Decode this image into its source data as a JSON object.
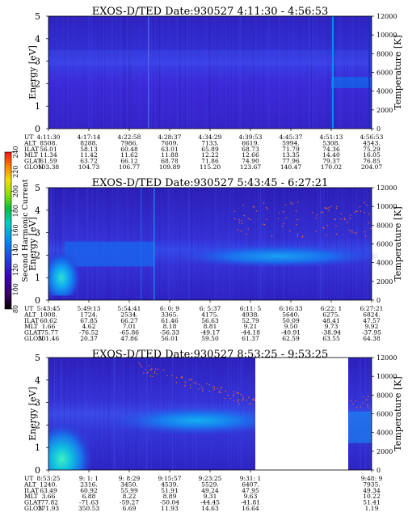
{
  "colorbar": {
    "title": "Second Harmonic Current",
    "ticks": [
      "80",
      "100",
      "120",
      "140",
      "160",
      "180",
      "200",
      "220",
      "240"
    ],
    "colors": [
      "#000000",
      "#3a0060",
      "#3c00b4",
      "#2340e6",
      "#0090f0",
      "#00d0c0",
      "#00c040",
      "#80e000",
      "#f0e000",
      "#ff8000",
      "#ff1010"
    ]
  },
  "chart_data": [
    {
      "type": "heatmap",
      "title": "EXOS-D/TED   Date:930527  4:11:30 - 4:56:53",
      "ylabel": "Energy [eV]",
      "y2label": "Temperature [K]",
      "ylim": [
        0,
        5
      ],
      "y2lim": [
        0,
        12000
      ],
      "yticks": [
        "0",
        "1",
        "2",
        "3",
        "4",
        "5"
      ],
      "y2ticks": [
        "0",
        "2000",
        "4000",
        "6000",
        "8000",
        "10000",
        "12000"
      ],
      "grid": false,
      "gap": null,
      "table": {
        "labels": [
          "UT",
          "ALT",
          "ILAT",
          "MLT",
          "GLAT",
          "GLON"
        ],
        "columns": [
          [
            "4:11:30",
            "8508.",
            "56.01",
            "11.34",
            "61.59",
            "103.38"
          ],
          [
            "4:17:14",
            "8288.",
            "58.13",
            "11.42",
            "63.72",
            "104.73"
          ],
          [
            "4:22:58",
            "7986.",
            "60.48",
            "11.62",
            "66.12",
            "106.77"
          ],
          [
            "4:28:37",
            "7609.",
            "63.01",
            "11.88",
            "68.78",
            "109.89"
          ],
          [
            "4:34:29",
            "7133.",
            "65.89",
            "12.22",
            "71.86",
            "115.20"
          ],
          [
            "4:39:53",
            "6619.",
            "68.73",
            "12.66",
            "74.90",
            "123.67"
          ],
          [
            "4:45:37",
            "5994.",
            "71.79",
            "13.35",
            "77.96",
            "140.47"
          ],
          [
            "4:51:13",
            "5308.",
            "74.36",
            "14.40",
            "79.37",
            "170.02"
          ],
          [
            "4:56:53",
            "4543.",
            "75.29",
            "16.05",
            "76.85",
            "204.07"
          ]
        ]
      }
    },
    {
      "type": "heatmap",
      "title": "EXOS-D/TED   Date:930527  5:43:45 - 6:27:21",
      "ylabel": "Energy [eV]",
      "y2label": "Temperature [K]",
      "ylim": [
        0,
        5
      ],
      "y2lim": [
        0,
        12000
      ],
      "yticks": [
        "0",
        "1",
        "2",
        "3",
        "4",
        "5"
      ],
      "y2ticks": [
        "0",
        "2000",
        "4000",
        "6000",
        "8000",
        "10000",
        "12000"
      ],
      "grid": false,
      "gap": null,
      "table": {
        "labels": [
          "UT",
          "ALT",
          "ILAT",
          "MLT",
          "GLAT",
          "GLON"
        ],
        "columns": [
          [
            "5:43:45",
            "1008.",
            "60.62",
            "1.66",
            "-75.77",
            "301.46"
          ],
          [
            "5:49:13",
            "1724.",
            "67.85",
            "4.62",
            "-76.52",
            "20.37"
          ],
          [
            "5:54:41",
            "2534.",
            "66.27",
            "7.01",
            "-65.86",
            "47.86"
          ],
          [
            "6: 0: 9",
            "3365.",
            "61.46",
            "8.18",
            "-56.33",
            "56.01"
          ],
          [
            "6: 5:37",
            "4175.",
            "56.63",
            "8.81",
            "-49.17",
            "59.50"
          ],
          [
            "6:11: 5",
            "4938.",
            "52.79",
            "9.21",
            "-44.18",
            "61.37"
          ],
          [
            "6:16:33",
            "5640.",
            "50.09",
            "9.50",
            "-40.91",
            "62.59"
          ],
          [
            "6:22: 1",
            "6275.",
            "48.41",
            "9.73",
            "-38.94",
            "63.55"
          ],
          [
            "6:27:21",
            "6824.",
            "47.57",
            "9.92",
            "-37.95",
            "64.38"
          ]
        ]
      }
    },
    {
      "type": "heatmap",
      "title": "EXOS-D/TED   Date:930527  8:53:25 - 9:53:25",
      "ylabel": "Energy [eV]",
      "y2label": "Temperature [K]",
      "ylim": [
        0,
        5
      ],
      "y2lim": [
        0,
        12000
      ],
      "yticks": [
        "0",
        "1",
        "2",
        "3",
        "4",
        "5"
      ],
      "y2ticks": [
        "0",
        "2000",
        "4000",
        "6000",
        "8000",
        "10000",
        "12000"
      ],
      "grid": false,
      "gap": {
        "from": "9:31: 1",
        "to": "9:48: 9"
      },
      "table": {
        "labels": [
          "UT",
          "ALT",
          "ILAT",
          "MLT",
          "GLAT",
          "GLON"
        ],
        "columns": [
          [
            "8:53:25",
            "1240.",
            "63.49",
            "3.66",
            "-77.82",
            "271.93"
          ],
          [
            "9: 1: 1",
            "2316.",
            "60.92",
            "6.88",
            "-71.63",
            "350.53"
          ],
          [
            "9: 8:29",
            "3450.",
            "55.99",
            "8.22",
            "-59.27",
            "6.69"
          ],
          [
            "9:15:57",
            "4539.",
            "51.91",
            "8.89",
            "-50.04",
            "11.93"
          ],
          [
            "9:23:25",
            "5529.",
            "49.24",
            "9.31",
            "-44.45",
            "14.63"
          ],
          [
            "9:31: 1",
            "6407.",
            "47.95",
            "9.63",
            "-41.81",
            "16.64"
          ],
          [
            "",
            "",
            "",
            "",
            "",
            ""
          ],
          [
            "",
            "",
            "",
            "",
            "",
            ""
          ],
          [
            "9:48: 9",
            "7935.",
            "49.34",
            "10.22",
            "51.41",
            "1.19"
          ]
        ]
      }
    }
  ]
}
